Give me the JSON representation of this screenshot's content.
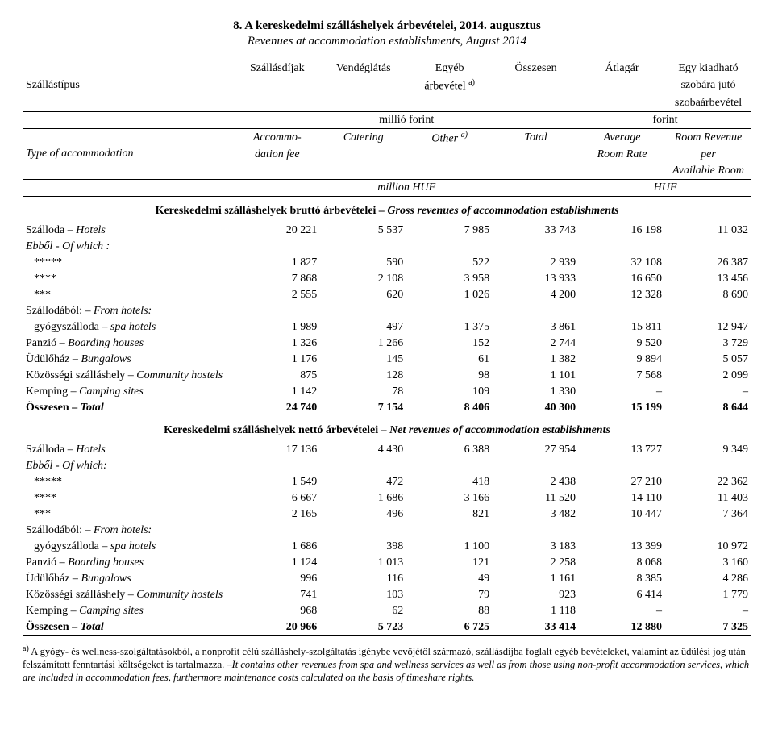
{
  "title": "8. A kereskedelmi szálláshelyek árbevételei, 2014. augusztus",
  "subtitle": "Revenues at accommodation establishments, August 2014",
  "header": {
    "hu": {
      "rowlabel": "Szállástípus",
      "c1": "Szállásdíjak",
      "c2": "Vendéglátás",
      "c3_l1": "Egyéb",
      "c3_l2": "árbevétel ",
      "c4": "Összesen",
      "c5": "Átlagár",
      "c6_l1": "Egy kiadható",
      "c6_l2": "szobára jutó",
      "c6_l3": "szobaárbevétel",
      "unit_left": "millió forint",
      "unit_right": "forint"
    },
    "en": {
      "rowlabel": "Type of accommodation",
      "c1_l1": "Accommo-",
      "c1_l2": "dation fee",
      "c2": "Catering",
      "c3": "Other ",
      "c4": "Total",
      "c5_l1": "Average",
      "c5_l2": "Room Rate",
      "c6_l1": "Room Revenue",
      "c6_l2": "per",
      "c6_l3": "Available Room",
      "unit_left": "million HUF",
      "unit_right": "HUF"
    },
    "sup_a": "a)"
  },
  "sections": {
    "gross": {
      "title_hu": "Kereskedelmi szálláshelyek bruttó árbevételei",
      "title_en": " – Gross revenues of accommodation establishments",
      "rows": [
        {
          "label": "Szálloda – Hotels",
          "italicPart": "Hotels",
          "v": [
            "20 221",
            "5 537",
            "7 985",
            "33 743",
            "16 198",
            "11 032"
          ]
        },
        {
          "label": "Ebből - Of which :",
          "italic": true,
          "v": [
            "",
            "",
            "",
            "",
            "",
            ""
          ]
        },
        {
          "label": "*****",
          "indent": 1,
          "v": [
            "1 827",
            "590",
            "522",
            "2 939",
            "32 108",
            "26 387"
          ]
        },
        {
          "label": "****",
          "indent": 1,
          "v": [
            "7 868",
            "2 108",
            "3 958",
            "13 933",
            "16 650",
            "13 456"
          ]
        },
        {
          "label": "***",
          "indent": 1,
          "v": [
            "2 555",
            "620",
            "1 026",
            "4 200",
            "12 328",
            "8 690"
          ]
        },
        {
          "label": "Szállodából: – From hotels:",
          "italicPart": "From hotels:",
          "v": [
            "",
            "",
            "",
            "",
            "",
            ""
          ]
        },
        {
          "label": "gyógyszálloda – spa hotels",
          "italicPart": "spa hotels",
          "indent": 1,
          "v": [
            "1 989",
            "497",
            "1 375",
            "3 861",
            "15 811",
            "12 947"
          ]
        },
        {
          "label": "Panzió – Boarding houses",
          "italicPart": "Boarding houses",
          "v": [
            "1 326",
            "1 266",
            "152",
            "2 744",
            "9 520",
            "3 729"
          ]
        },
        {
          "label": "Üdülőház – Bungalows",
          "italicPart": "Bungalows",
          "v": [
            "1 176",
            "145",
            "61",
            "1 382",
            "9 894",
            "5 057"
          ]
        },
        {
          "label": "Közösségi szálláshely – Community hostels",
          "italicPart": "Community hostels",
          "v": [
            "875",
            "128",
            "98",
            "1 101",
            "7 568",
            "2 099"
          ]
        },
        {
          "label": "Kemping – Camping sites",
          "italicPart": "Camping sites",
          "v": [
            "1 142",
            "78",
            "109",
            "1 330",
            "–",
            "–"
          ]
        },
        {
          "label": "Összesen – Total",
          "italicPart": "Total",
          "bold": true,
          "v": [
            "24 740",
            "7 154",
            "8 406",
            "40 300",
            "15 199",
            "8 644"
          ]
        }
      ]
    },
    "net": {
      "title_hu": "Kereskedelmi szálláshelyek nettó árbevételei",
      "title_en": " – Net revenues of accommodation establishments",
      "rows": [
        {
          "label": "Szálloda – Hotels",
          "italicPart": "Hotels",
          "v": [
            "17 136",
            "4 430",
            "6 388",
            "27 954",
            "13 727",
            "9 349"
          ]
        },
        {
          "label": "Ebből - Of which:",
          "italic": true,
          "v": [
            "",
            "",
            "",
            "",
            "",
            ""
          ]
        },
        {
          "label": "*****",
          "indent": 1,
          "v": [
            "1 549",
            "472",
            "418",
            "2 438",
            "27 210",
            "22 362"
          ]
        },
        {
          "label": "****",
          "indent": 1,
          "v": [
            "6 667",
            "1 686",
            "3 166",
            "11 520",
            "14 110",
            "11 403"
          ]
        },
        {
          "label": "***",
          "indent": 1,
          "v": [
            "2 165",
            "496",
            "821",
            "3 482",
            "10 447",
            "7 364"
          ]
        },
        {
          "label": "Szállodából: – From hotels:",
          "italicPart": "From hotels:",
          "v": [
            "",
            "",
            "",
            "",
            "",
            ""
          ]
        },
        {
          "label": "gyógyszálloda – spa hotels",
          "italicPart": "spa hotels",
          "indent": 1,
          "v": [
            "1 686",
            "398",
            "1 100",
            "3 183",
            "13 399",
            "10 972"
          ]
        },
        {
          "label": "Panzió – Boarding houses",
          "italicPart": "Boarding houses",
          "v": [
            "1 124",
            "1 013",
            "121",
            "2 258",
            "8 068",
            "3 160"
          ]
        },
        {
          "label": "Üdülőház – Bungalows",
          "italicPart": "Bungalows",
          "v": [
            "996",
            "116",
            "49",
            "1 161",
            "8 385",
            "4 286"
          ]
        },
        {
          "label": "Közösségi szálláshely – Community hostels",
          "italicPart": "Community hostels",
          "v": [
            "741",
            "103",
            "79",
            "923",
            "6 414",
            "1 779"
          ]
        },
        {
          "label": "Kemping – Camping sites",
          "italicPart": "Camping sites",
          "v": [
            "968",
            "62",
            "88",
            "1 118",
            "–",
            "–"
          ]
        },
        {
          "label": "Összesen – Total",
          "italicPart": "Total",
          "bold": true,
          "v": [
            "20 966",
            "5 723",
            "6 725",
            "33 414",
            "12 880",
            "7 325"
          ]
        }
      ]
    }
  },
  "footnote": {
    "sup": "a)",
    "hu": " A gyógy- és wellness-szolgáltatásokból, a nonprofit célú szálláshely-szolgáltatás igénybe vevőjétől származó, szállásdíjba foglalt egyéb bevételeket, valamint az üdülési jog után felszámított fenntartási költségeket is tartalmazza. ",
    "en": "–It contains other revenues from spa and wellness services as well as from those using non-profit accommodation services, which are included in accommodation fees, furthermore maintenance costs calculated on the basis of timeshare rights."
  }
}
